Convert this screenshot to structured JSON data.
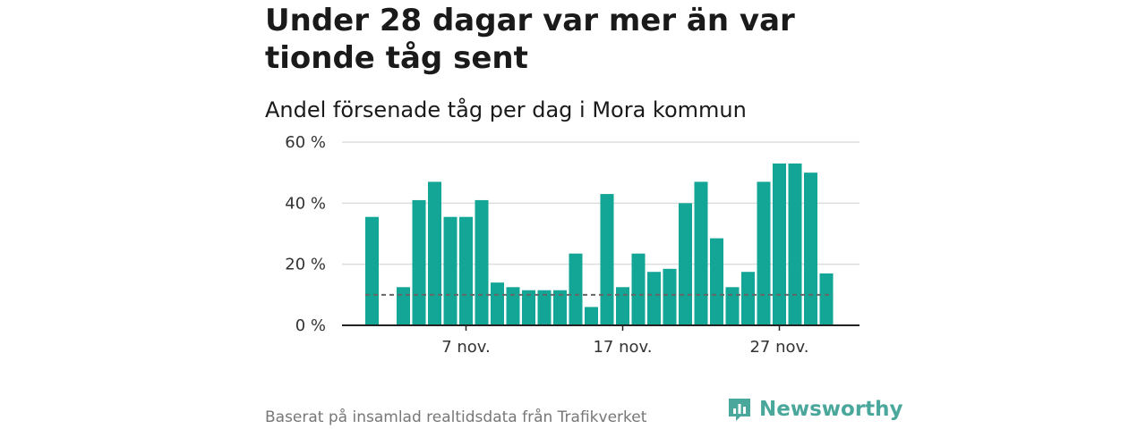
{
  "title": "Under 28 dagar var mer än var tionde tåg sent",
  "subtitle": "Andel försenade tåg per dag i Mora kommun",
  "source": "Baserat på insamlad realtidsdata från Trafikverket",
  "brand": "Newsworthy",
  "colors": {
    "bar": "#13a596",
    "grid": "#dddddd",
    "reference": "#666666",
    "axis": "#222222",
    "brand": "#4aa79b"
  },
  "chart_data": {
    "type": "bar",
    "x": [
      "1 nov.",
      "2 nov.",
      "3 nov.",
      "4 nov.",
      "5 nov.",
      "6 nov.",
      "7 nov.",
      "8 nov.",
      "9 nov.",
      "10 nov.",
      "11 nov.",
      "12 nov.",
      "13 nov.",
      "14 nov.",
      "15 nov.",
      "16 nov.",
      "17 nov.",
      "18 nov.",
      "19 nov.",
      "20 nov.",
      "21 nov.",
      "22 nov.",
      "23 nov.",
      "24 nov.",
      "25 nov.",
      "26 nov.",
      "27 nov.",
      "28 nov.",
      "29 nov.",
      "30 nov."
    ],
    "values": [
      35.5,
      null,
      12.5,
      41,
      47,
      35.5,
      35.5,
      41,
      14,
      12.5,
      11.5,
      11.5,
      11.5,
      23.5,
      6,
      43,
      12.5,
      23.5,
      17.5,
      18.5,
      40,
      47,
      28.5,
      12.5,
      17.5,
      47,
      53,
      53,
      50,
      17
    ],
    "ylim": [
      0,
      60
    ],
    "yticks": [
      0,
      20,
      40,
      60
    ],
    "ytick_labels": [
      "0 %",
      "20 %",
      "40 %",
      "60 %"
    ],
    "xtick_labels": [
      {
        "x": "7 nov.",
        "label": "7 nov."
      },
      {
        "x": "17 nov.",
        "label": "17 nov."
      },
      {
        "x": "27 nov.",
        "label": "27 nov."
      }
    ],
    "reference_line": 10,
    "grid": true
  }
}
